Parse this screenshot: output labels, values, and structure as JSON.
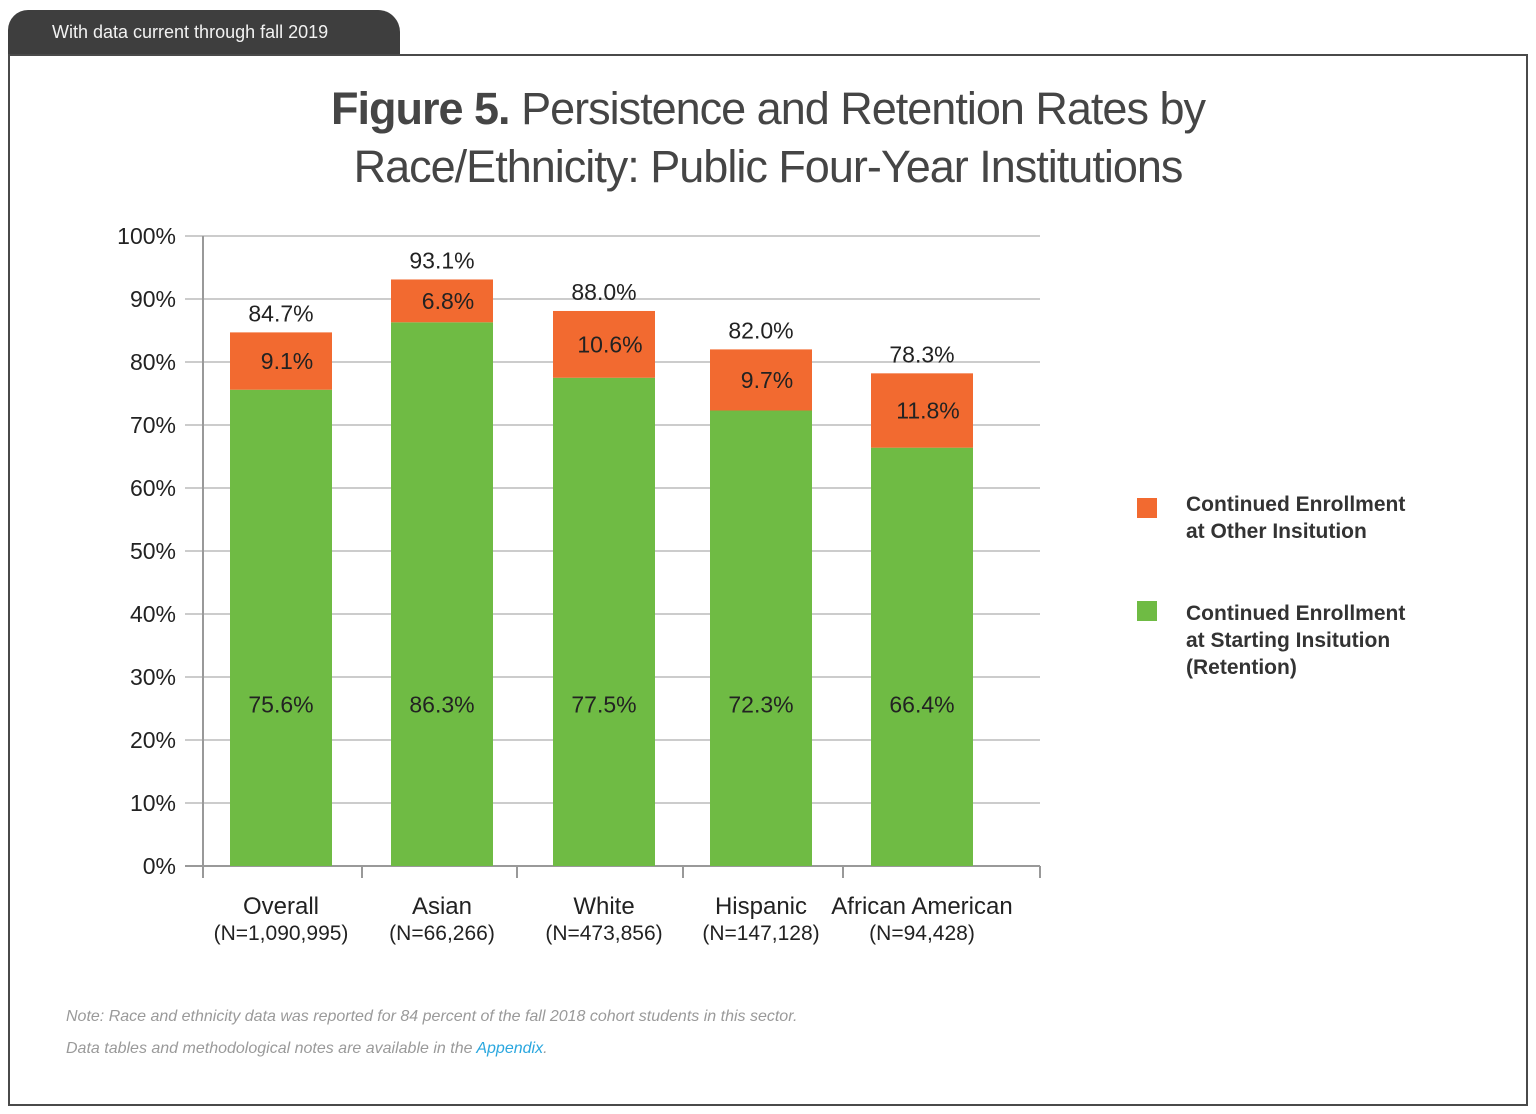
{
  "header_tab": "With data current through fall 2019",
  "title": {
    "bold": "Figure 5.",
    "line1": "Persistence and Retention Rates by",
    "line2": "Race/Ethnicity: Public Four-Year Institutions"
  },
  "colors": {
    "other": "#f26a30",
    "retention": "#6fbb44",
    "grid": "#cccccc",
    "axis": "#999999"
  },
  "chart_data": {
    "type": "bar",
    "stacked": true,
    "categories": [
      "Overall",
      "Asian",
      "White",
      "Hispanic",
      "African American"
    ],
    "category_counts": [
      "(N=1,090,995)",
      "(N=66,266)",
      "(N=473,856)",
      "(N=147,128)",
      "(N=94,428)"
    ],
    "series": [
      {
        "name": "Continued Enrollment at Starting Insitution (Retention)",
        "values": [
          75.6,
          86.3,
          77.5,
          72.3,
          66.4
        ],
        "labels": [
          "75.6%",
          "86.3%",
          "77.5%",
          "72.3%",
          "66.4%"
        ]
      },
      {
        "name": "Continued Enrollment at Other Insitution",
        "values": [
          9.1,
          6.8,
          10.6,
          9.7,
          11.8
        ],
        "labels": [
          "9.1%",
          "6.8%",
          "10.6%",
          "9.7%",
          "11.8%"
        ]
      }
    ],
    "totals": [
      84.7,
      93.1,
      88.0,
      82.0,
      78.3
    ],
    "total_labels": [
      "84.7%",
      "93.1%",
      "88.0%",
      "82.0%",
      "78.3%"
    ],
    "ylim": [
      0,
      100
    ],
    "yticks": [
      0,
      10,
      20,
      30,
      40,
      50,
      60,
      70,
      80,
      90,
      100
    ],
    "ytick_labels": [
      "0%",
      "10%",
      "20%",
      "30%",
      "40%",
      "50%",
      "60%",
      "70%",
      "80%",
      "90%",
      "100%"
    ],
    "grid": true,
    "legend_position": "right",
    "legend": [
      {
        "lines": [
          "Continued Enrollment",
          "at Other Insitution"
        ]
      },
      {
        "lines": [
          "Continued Enrollment",
          "at Starting Insitution",
          "(Retention)"
        ]
      }
    ]
  },
  "notes": {
    "line1": "Note: Race and ethnicity data was reported for 84 percent of the fall 2018 cohort students in this sector.",
    "line2_prefix": "Data tables and methodological notes are available in the ",
    "line2_link": "Appendix",
    "line2_suffix": "."
  }
}
